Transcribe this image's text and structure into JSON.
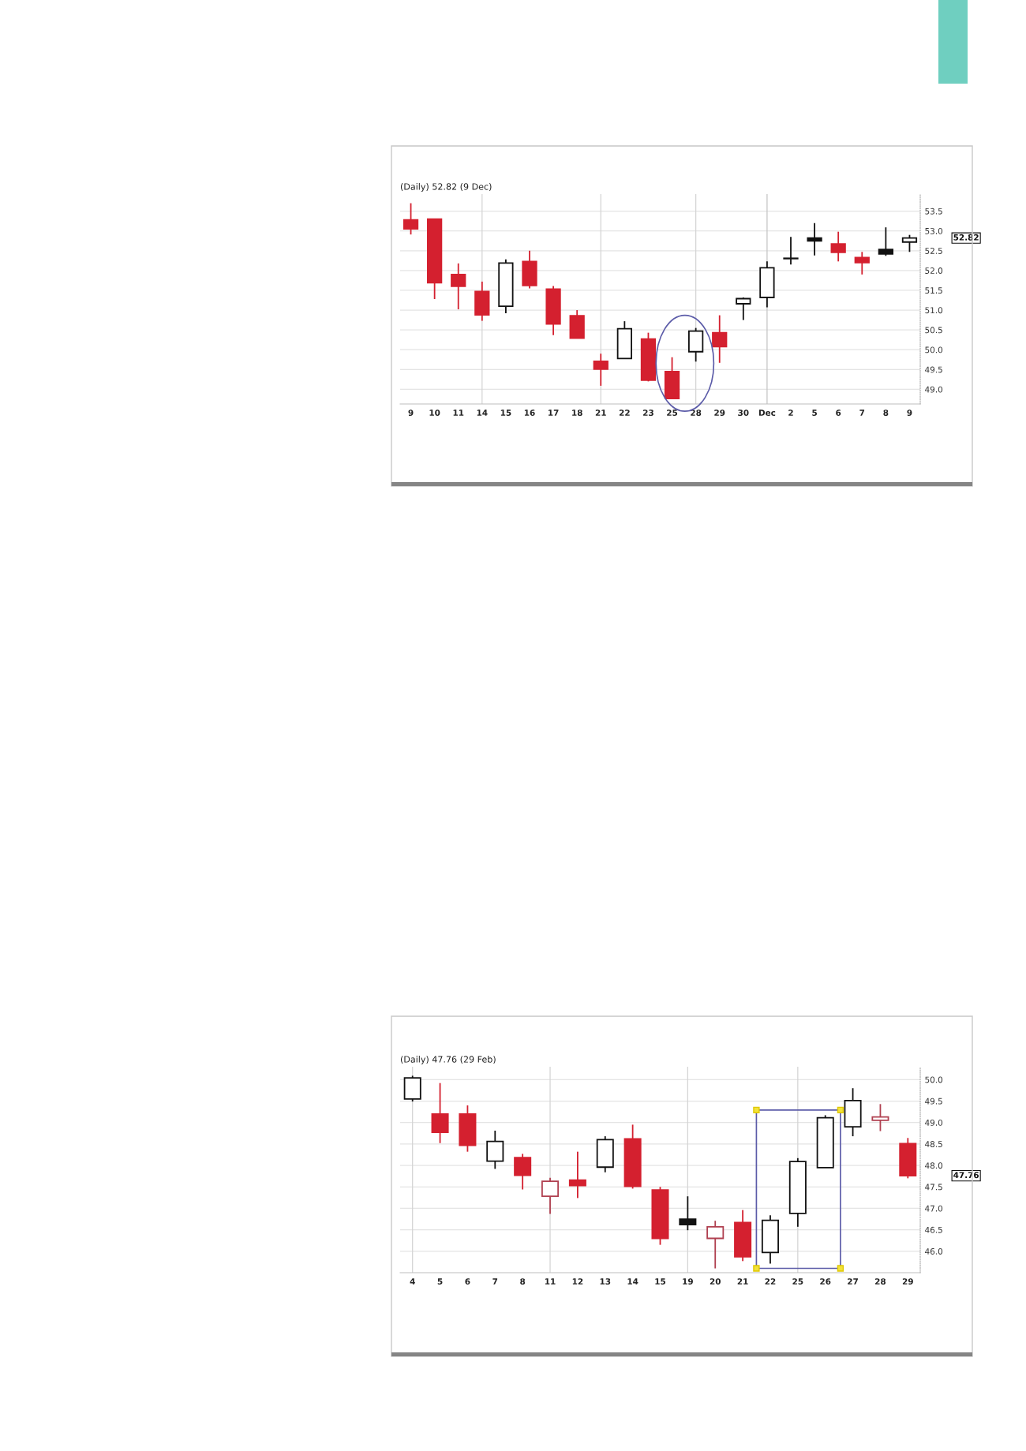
{
  "chart_data": [
    {
      "type": "candlestick",
      "title": "(Daily) 52.82 (9 Dec)",
      "categories": [
        "9",
        "10",
        "11",
        "14",
        "15",
        "16",
        "17",
        "18",
        "21",
        "22",
        "23",
        "25",
        "28",
        "29",
        "30",
        "Dec",
        "2",
        "5",
        "6",
        "7",
        "8",
        "9"
      ],
      "ohlc": [
        [
          53.28,
          53.7,
          52.91,
          53.05
        ],
        [
          53.3,
          53.31,
          51.28,
          51.69
        ],
        [
          51.9,
          52.18,
          51.02,
          51.6
        ],
        [
          51.47,
          51.72,
          50.73,
          50.88
        ],
        [
          51.1,
          52.28,
          50.92,
          52.19
        ],
        [
          52.23,
          52.5,
          51.55,
          51.62
        ],
        [
          51.53,
          51.61,
          50.37,
          50.65
        ],
        [
          50.86,
          51.0,
          50.29,
          50.29
        ],
        [
          49.71,
          49.9,
          49.09,
          49.51
        ],
        [
          49.78,
          50.72,
          49.78,
          50.53
        ],
        [
          50.27,
          50.43,
          49.2,
          49.23
        ],
        [
          49.45,
          49.81,
          48.77,
          48.77
        ],
        [
          49.95,
          50.55,
          49.7,
          50.47
        ],
        [
          50.43,
          50.87,
          49.67,
          50.08
        ],
        [
          51.16,
          51.32,
          50.75,
          51.29
        ],
        [
          51.32,
          52.23,
          51.07,
          52.07
        ],
        [
          52.31,
          52.85,
          52.15,
          52.3
        ],
        [
          52.82,
          53.2,
          52.38,
          52.75
        ],
        [
          52.67,
          52.98,
          52.23,
          52.46
        ],
        [
          52.33,
          52.47,
          51.9,
          52.2
        ],
        [
          52.53,
          53.09,
          52.37,
          52.42
        ],
        [
          52.72,
          52.9,
          52.47,
          52.82
        ]
      ],
      "colors": [
        "#d4202f",
        "#d4202f",
        "#d4202f",
        "#d4202f",
        "#111111",
        "#d4202f",
        "#d4202f",
        "#d4202f",
        "#d4202f",
        "#111111",
        "#d4202f",
        "#d4202f",
        "#111111",
        "#d4202f",
        "#111111",
        "#111111",
        "#111111",
        "#111111",
        "#d4202f",
        "#d4202f",
        "#111111",
        "#111111"
      ],
      "ylim": [
        48.63,
        53.93
      ],
      "yticks": [
        {
          "value": 49,
          "label": "49.0"
        },
        {
          "value": 49.5,
          "label": "49.5"
        },
        {
          "value": 50,
          "label": "50.0"
        },
        {
          "value": 50.5,
          "label": "50.5"
        },
        {
          "value": 51,
          "label": "51.0"
        },
        {
          "value": 51.5,
          "label": "51.5"
        },
        {
          "value": 52,
          "label": "52.0"
        },
        {
          "value": 52.5,
          "label": "52.5"
        },
        {
          "value": 53,
          "label": "53.0"
        },
        {
          "value": 53.5,
          "label": "53.5"
        }
      ],
      "grid": "y",
      "ref_lines": [
        {
          "axis": "x",
          "value": "14",
          "color": "#d4d4d4"
        },
        {
          "axis": "x",
          "value": "21",
          "color": "#d4d4d4"
        },
        {
          "axis": "x",
          "value": "28",
          "color": "#d4d4d4"
        },
        {
          "axis": "x",
          "value": "Dec",
          "color": "#c4c4c4"
        }
      ],
      "annotations": [
        "52.82"
      ]
    },
    {
      "type": "candlestick",
      "title": "(Daily) 47.76 (29 Feb)",
      "categories": [
        "4",
        "5",
        "6",
        "7",
        "8",
        "11",
        "12",
        "13",
        "14",
        "15",
        "19",
        "20",
        "21",
        "22",
        "25",
        "26",
        "27",
        "28",
        "29"
      ],
      "ohlc": [
        [
          49.55,
          50.09,
          49.49,
          50.04
        ],
        [
          49.2,
          49.92,
          48.52,
          48.77
        ],
        [
          49.2,
          49.4,
          48.32,
          48.47
        ],
        [
          48.1,
          48.81,
          47.92,
          48.56
        ],
        [
          48.18,
          48.27,
          47.44,
          47.77
        ],
        [
          47.28,
          47.71,
          46.87,
          47.63
        ],
        [
          47.66,
          48.32,
          47.24,
          47.53
        ],
        [
          47.96,
          48.68,
          47.84,
          48.6
        ],
        [
          48.62,
          48.95,
          47.46,
          47.51
        ],
        [
          47.43,
          47.5,
          46.15,
          46.3
        ],
        [
          46.75,
          47.28,
          46.49,
          46.62
        ],
        [
          46.3,
          46.71,
          45.6,
          46.57
        ],
        [
          46.67,
          46.96,
          45.77,
          45.87
        ],
        [
          45.97,
          46.84,
          45.71,
          46.72
        ],
        [
          46.88,
          48.17,
          46.57,
          48.09
        ],
        [
          47.95,
          49.17,
          47.95,
          49.11
        ],
        [
          48.9,
          49.8,
          48.68,
          49.51
        ],
        [
          49.05,
          49.43,
          48.8,
          49.13
        ],
        [
          48.51,
          48.64,
          47.7,
          47.76
        ]
      ],
      "colors": [
        "#111111",
        "#d4202f",
        "#d4202f",
        "#111111",
        "#d4202f",
        "#b04050",
        "#d4202f",
        "#111111",
        "#d4202f",
        "#d4202f",
        "#111111",
        "#b04050",
        "#d4202f",
        "#111111",
        "#111111",
        "#111111",
        "#111111",
        "#b04050",
        "#d4202f"
      ],
      "ylim": [
        45.5,
        50.3
      ],
      "yticks": [
        {
          "value": 46,
          "label": "46.0"
        },
        {
          "value": 46.5,
          "label": "46.5"
        },
        {
          "value": 47,
          "label": "47.0"
        },
        {
          "value": 47.5,
          "label": "47.5"
        },
        {
          "value": 48,
          "label": "48.0"
        },
        {
          "value": 48.5,
          "label": "48.5"
        },
        {
          "value": 49,
          "label": "49.0"
        },
        {
          "value": 49.5,
          "label": "49.5"
        },
        {
          "value": 50,
          "label": "50.0"
        }
      ],
      "grid": "y",
      "ref_lines": [
        {
          "axis": "x",
          "value": "4",
          "color": "#d4d4d4"
        },
        {
          "axis": "x",
          "value": "11",
          "color": "#d4d4d4"
        },
        {
          "axis": "x",
          "value": "19",
          "color": "#d4d4d4"
        },
        {
          "axis": "x",
          "value": "25",
          "color": "#d4d4d4"
        }
      ],
      "annotations": [
        "47.76"
      ]
    }
  ]
}
